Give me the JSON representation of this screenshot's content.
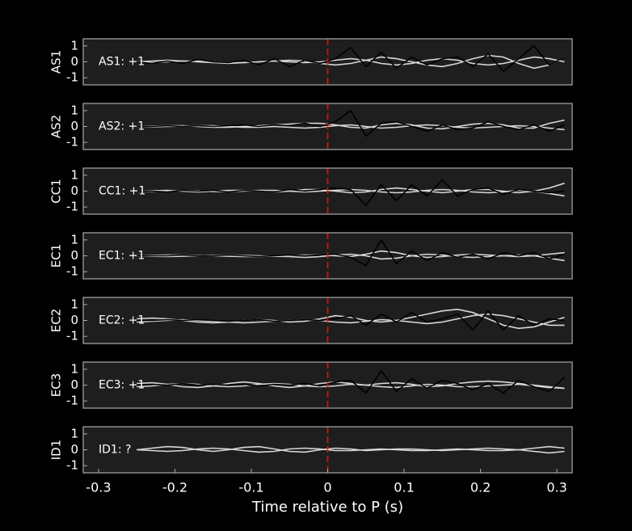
{
  "chart_data": [
    {
      "type": "line",
      "ylabel": "AS1",
      "annotation": "AS1: +1",
      "annotation_color": "#1a1ab0",
      "xlim": [
        -0.32,
        0.32
      ],
      "ylim": [
        -1.45,
        1.45
      ],
      "yticks": [
        1,
        0,
        -1
      ],
      "vline": {
        "x": 0,
        "color": "#dd1111"
      },
      "x": [
        -0.25,
        -0.23,
        -0.21,
        -0.19,
        -0.17,
        -0.15,
        -0.13,
        -0.11,
        -0.09,
        -0.07,
        -0.05,
        -0.03,
        -0.01,
        0.01,
        0.03,
        0.05,
        0.07,
        0.09,
        0.11,
        0.13,
        0.15,
        0.17,
        0.19,
        0.21,
        0.23,
        0.25,
        0.27,
        0.29,
        0.31
      ],
      "series": [
        {
          "color": "#d8d8d8",
          "values": [
            0,
            0.05,
            0.1,
            0.05,
            0,
            -0.05,
            -0.1,
            -0.05,
            0,
            0.05,
            0.1,
            0.05,
            -0.1,
            -0.2,
            -0.1,
            0.1,
            0.3,
            0.2,
            0,
            -0.2,
            -0.3,
            -0.1,
            0.2,
            0.4,
            0.3,
            -0.1,
            -0.4,
            -0.2,
            0.3
          ]
        },
        {
          "color": "#d8d8d8",
          "values": [
            0,
            -0.05,
            0,
            0.05,
            0.05,
            0,
            -0.05,
            -0.05,
            0,
            0.05,
            0,
            -0.05,
            0,
            0.1,
            0.2,
            0.1,
            -0.1,
            -0.2,
            -0.1,
            0.1,
            0.2,
            0.1,
            -0.1,
            -0.2,
            -0.1,
            0.1,
            0.3,
            0.2,
            0
          ]
        },
        {
          "color": "#000000",
          "values": [
            0,
            -0.1,
            0.05,
            -0.1,
            0.15,
            0,
            -0.05,
            0.1,
            -0.2,
            0.2,
            -0.3,
            0.1,
            -0.1,
            0.2,
            0.9,
            -0.3,
            0.6,
            -0.4,
            0.3,
            -0.2,
            0.2,
            0.3,
            -0.3,
            0.5,
            -0.6,
            0.2,
            1.0,
            -0.2,
            0.3
          ]
        }
      ]
    },
    {
      "type": "line",
      "ylabel": "AS2",
      "annotation": "AS2: +1",
      "annotation_color": "#dd1111",
      "xlim": [
        -0.32,
        0.32
      ],
      "ylim": [
        -1.45,
        1.45
      ],
      "yticks": [
        1,
        0,
        -1
      ],
      "vline": {
        "x": 0,
        "color": "#dd1111"
      },
      "x": [
        -0.25,
        -0.23,
        -0.21,
        -0.19,
        -0.17,
        -0.15,
        -0.13,
        -0.11,
        -0.09,
        -0.07,
        -0.05,
        -0.03,
        -0.01,
        0.01,
        0.03,
        0.05,
        0.07,
        0.09,
        0.11,
        0.13,
        0.15,
        0.17,
        0.19,
        0.21,
        0.23,
        0.25,
        0.27,
        0.29,
        0.31
      ],
      "series": [
        {
          "color": "#d8d8d8",
          "values": [
            0,
            0.02,
            0.05,
            0.05,
            0,
            -0.05,
            -0.05,
            0,
            0.05,
            0.1,
            0.15,
            0.2,
            0.2,
            0.1,
            -0.05,
            -0.1,
            0.1,
            0.2,
            0.1,
            -0.1,
            -0.15,
            0,
            0.15,
            0.2,
            0.1,
            -0.1,
            -0.1,
            0.2,
            0.4
          ]
        },
        {
          "color": "#d8d8d8",
          "values": [
            0,
            -0.02,
            0,
            0.02,
            0.05,
            0.05,
            0,
            -0.05,
            -0.05,
            0,
            -0.05,
            -0.1,
            -0.05,
            0.05,
            0.1,
            0,
            -0.1,
            -0.05,
            0.05,
            0.1,
            0.05,
            -0.05,
            -0.1,
            -0.05,
            0,
            0.05,
            0,
            -0.1,
            -0.2
          ]
        },
        {
          "color": "#000000",
          "values": [
            0,
            0,
            0.05,
            0,
            0.05,
            0,
            0.05,
            0.1,
            0,
            0.1,
            0.05,
            0.2,
            0,
            0.3,
            1.0,
            -0.6,
            0.2,
            0.3,
            0,
            -0.3,
            0.1,
            -0.2,
            -0.1,
            0.3,
            0,
            -0.2,
            0.1,
            -0.3,
            0.1
          ]
        }
      ]
    },
    {
      "type": "line",
      "ylabel": "CC1",
      "annotation": "CC1: +1",
      "annotation_color": "#dd1111",
      "xlim": [
        -0.32,
        0.32
      ],
      "ylim": [
        -1.45,
        1.45
      ],
      "yticks": [
        1,
        0,
        -1
      ],
      "vline": {
        "x": 0,
        "color": "#dd1111"
      },
      "x": [
        -0.25,
        -0.23,
        -0.21,
        -0.19,
        -0.17,
        -0.15,
        -0.13,
        -0.11,
        -0.09,
        -0.07,
        -0.05,
        -0.03,
        -0.01,
        0.01,
        0.03,
        0.05,
        0.07,
        0.09,
        0.11,
        0.13,
        0.15,
        0.17,
        0.19,
        0.21,
        0.23,
        0.25,
        0.27,
        0.29,
        0.31
      ],
      "series": [
        {
          "color": "#d8d8d8",
          "values": [
            0,
            0.02,
            0.05,
            0,
            -0.05,
            0,
            0.05,
            0.05,
            0,
            -0.05,
            0,
            0.1,
            0.1,
            0,
            -0.1,
            -0.05,
            0.1,
            0.2,
            0.1,
            0,
            -0.1,
            0,
            0.1,
            0.1,
            0,
            -0.1,
            0,
            0.2,
            0.5
          ]
        },
        {
          "color": "#d8d8d8",
          "values": [
            0,
            -0.02,
            0,
            0.03,
            0.02,
            -0.02,
            -0.03,
            0,
            0.05,
            0.05,
            0,
            -0.05,
            0,
            0.05,
            0.1,
            0.05,
            -0.05,
            -0.1,
            -0.05,
            0.05,
            0.1,
            0.05,
            -0.05,
            -0.1,
            -0.05,
            0.05,
            0,
            -0.15,
            -0.3
          ]
        },
        {
          "color": "#000000",
          "values": [
            0,
            0,
            -0.05,
            0.05,
            0,
            0.05,
            -0.05,
            0.05,
            0,
            -0.05,
            0.1,
            0,
            0.1,
            0.2,
            0.1,
            -0.9,
            0.4,
            -0.6,
            0.4,
            -0.3,
            0.7,
            -0.3,
            0.1,
            0.2,
            -0.2,
            0.1,
            0,
            -0.1,
            0
          ]
        }
      ]
    },
    {
      "type": "line",
      "ylabel": "EC1",
      "annotation": "EC1: +1",
      "annotation_color": "#dd1111",
      "xlim": [
        -0.32,
        0.32
      ],
      "ylim": [
        -1.45,
        1.45
      ],
      "yticks": [
        1,
        0,
        -1
      ],
      "vline": {
        "x": 0,
        "color": "#dd1111"
      },
      "x": [
        -0.25,
        -0.23,
        -0.21,
        -0.19,
        -0.17,
        -0.15,
        -0.13,
        -0.11,
        -0.09,
        -0.07,
        -0.05,
        -0.03,
        -0.01,
        0.01,
        0.03,
        0.05,
        0.07,
        0.09,
        0.11,
        0.13,
        0.15,
        0.17,
        0.19,
        0.21,
        0.23,
        0.25,
        0.27,
        0.29,
        0.31
      ],
      "series": [
        {
          "color": "#d8d8d8",
          "values": [
            0,
            0.03,
            0.05,
            0.05,
            0.02,
            0,
            -0.03,
            -0.05,
            -0.05,
            -0.02,
            0.02,
            0.05,
            0.05,
            0,
            -0.05,
            0.1,
            0.3,
            0.2,
            0,
            -0.1,
            -0.05,
            0.05,
            0.1,
            0.05,
            0,
            -0.05,
            0,
            0.1,
            0.2
          ]
        },
        {
          "color": "#d8d8d8",
          "values": [
            0,
            -0.03,
            -0.05,
            -0.03,
            0,
            0.03,
            0.05,
            0.03,
            0,
            -0.03,
            -0.05,
            -0.1,
            -0.05,
            0.05,
            0.1,
            0,
            -0.2,
            -0.15,
            0,
            0.1,
            0.05,
            -0.05,
            -0.1,
            -0.05,
            0,
            0.05,
            0,
            -0.15,
            -0.3
          ]
        },
        {
          "color": "#000000",
          "values": [
            0,
            0,
            0,
            0.05,
            0,
            0,
            0.05,
            0,
            -0.05,
            0,
            0.05,
            0,
            0.05,
            0.1,
            -0.1,
            -0.6,
            1.0,
            -0.5,
            0.3,
            -0.3,
            0.2,
            -0.1,
            0.1,
            -0.2,
            0.2,
            0,
            0.2,
            -0.2,
            0.1
          ]
        }
      ]
    },
    {
      "type": "line",
      "ylabel": "EC2",
      "annotation": "EC2: +1",
      "annotation_color": "#dd1111",
      "xlim": [
        -0.32,
        0.32
      ],
      "ylim": [
        -1.45,
        1.45
      ],
      "yticks": [
        1,
        0,
        -1
      ],
      "vline": {
        "x": 0,
        "color": "#dd1111"
      },
      "x": [
        -0.25,
        -0.23,
        -0.21,
        -0.19,
        -0.17,
        -0.15,
        -0.13,
        -0.11,
        -0.09,
        -0.07,
        -0.05,
        -0.03,
        -0.01,
        0.01,
        0.03,
        0.05,
        0.07,
        0.09,
        0.11,
        0.13,
        0.15,
        0.17,
        0.19,
        0.21,
        0.23,
        0.25,
        0.27,
        0.29,
        0.31
      ],
      "series": [
        {
          "color": "#d8d8d8",
          "values": [
            0.1,
            0.15,
            0.1,
            0,
            -0.1,
            -0.15,
            -0.1,
            0,
            0.05,
            0,
            -0.1,
            -0.05,
            0.1,
            0.3,
            0.2,
            0,
            -0.1,
            0,
            0.2,
            0.4,
            0.6,
            0.7,
            0.5,
            0.1,
            -0.3,
            -0.5,
            -0.4,
            -0.1,
            0.2
          ]
        },
        {
          "color": "#d8d8d8",
          "values": [
            -0.1,
            -0.05,
            0,
            0.05,
            0,
            -0.05,
            -0.1,
            -0.15,
            -0.1,
            -0.05,
            0,
            0.05,
            0,
            -0.1,
            -0.15,
            -0.05,
            0.05,
            0,
            -0.1,
            -0.2,
            -0.1,
            0.1,
            0.3,
            0.4,
            0.3,
            0.1,
            -0.1,
            -0.3,
            -0.3
          ]
        },
        {
          "color": "#000000",
          "values": [
            0,
            0,
            0.05,
            0,
            0.05,
            0,
            -0.05,
            0,
            0.05,
            -0.05,
            0,
            0.05,
            0,
            0.1,
            0.3,
            -0.3,
            0.4,
            -0.1,
            0.5,
            -0.1,
            0.1,
            0.4,
            -0.6,
            0.6,
            -0.6,
            0.3,
            -0.3,
            0.1,
            0
          ]
        }
      ]
    },
    {
      "type": "line",
      "ylabel": "EC3",
      "annotation": "EC3: +1",
      "annotation_color": "#dd1111",
      "xlim": [
        -0.32,
        0.32
      ],
      "ylim": [
        -1.45,
        1.45
      ],
      "yticks": [
        1,
        0,
        -1
      ],
      "vline": {
        "x": 0,
        "color": "#dd1111"
      },
      "x": [
        -0.25,
        -0.23,
        -0.21,
        -0.19,
        -0.17,
        -0.15,
        -0.13,
        -0.11,
        -0.09,
        -0.07,
        -0.05,
        -0.03,
        -0.01,
        0.01,
        0.03,
        0.05,
        0.07,
        0.09,
        0.11,
        0.13,
        0.15,
        0.17,
        0.19,
        0.21,
        0.23,
        0.25,
        0.27,
        0.29,
        0.31
      ],
      "series": [
        {
          "color": "#d8d8d8",
          "values": [
            0.1,
            0.15,
            0.05,
            -0.1,
            -0.15,
            -0.05,
            0.1,
            0.2,
            0.1,
            -0.05,
            -0.15,
            -0.05,
            0.1,
            0.2,
            0.1,
            0,
            0.1,
            0.15,
            0.05,
            -0.1,
            -0.05,
            0.1,
            0.2,
            0.25,
            0.2,
            0.1,
            0,
            -0.1,
            -0.2
          ]
        },
        {
          "color": "#d8d8d8",
          "values": [
            -0.1,
            -0.05,
            0.05,
            0.1,
            0.05,
            -0.05,
            -0.1,
            -0.05,
            0.05,
            0.1,
            0.05,
            -0.05,
            -0.1,
            -0.05,
            0.05,
            0,
            -0.1,
            -0.15,
            -0.05,
            0.05,
            0,
            -0.1,
            -0.1,
            -0.05,
            0,
            0.05,
            -0.05,
            -0.15,
            -0.2
          ]
        },
        {
          "color": "#000000",
          "values": [
            0,
            0.05,
            0,
            0.1,
            0,
            0.05,
            0,
            0.05,
            -0.05,
            0.05,
            0,
            0.1,
            -0.05,
            0.2,
            0.3,
            -0.5,
            0.9,
            -0.4,
            0.4,
            -0.2,
            0.3,
            0.1,
            -0.3,
            0.1,
            -0.5,
            0.3,
            -0.1,
            -0.4,
            0.5
          ]
        }
      ]
    },
    {
      "type": "line",
      "ylabel": "ID1",
      "annotation": "ID1: ?",
      "annotation_color": "#888888",
      "xlim": [
        -0.32,
        0.32
      ],
      "ylim": [
        -1.45,
        1.45
      ],
      "yticks": [
        1,
        0,
        -1
      ],
      "vline": {
        "x": 0,
        "color": "#dd1111"
      },
      "xticks": [
        -0.3,
        -0.2,
        -0.1,
        0,
        0.1,
        0.2,
        0.3
      ],
      "xlabel": "Time relative to P (s)",
      "x": [
        -0.25,
        -0.23,
        -0.21,
        -0.19,
        -0.17,
        -0.15,
        -0.13,
        -0.11,
        -0.09,
        -0.07,
        -0.05,
        -0.03,
        -0.01,
        0.01,
        0.03,
        0.05,
        0.07,
        0.09,
        0.11,
        0.13,
        0.15,
        0.17,
        0.19,
        0.21,
        0.23,
        0.25,
        0.27,
        0.29,
        0.31
      ],
      "series": [
        {
          "color": "#d8d8d8",
          "values": [
            0,
            0.1,
            0.2,
            0.15,
            0,
            -0.1,
            0,
            0.15,
            0.2,
            0.05,
            -0.1,
            -0.15,
            0,
            0.1,
            0.05,
            -0.05,
            0,
            0.05,
            0.05,
            0,
            -0.05,
            0,
            0.05,
            0.1,
            0.05,
            0,
            0.1,
            0.2,
            0.1
          ]
        },
        {
          "color": "#d8d8d8",
          "values": [
            0,
            -0.05,
            -0.1,
            -0.05,
            0.05,
            0.1,
            0.05,
            -0.05,
            -0.15,
            -0.1,
            0.05,
            0.1,
            0.05,
            -0.05,
            -0.05,
            0,
            0.05,
            0,
            -0.05,
            -0.05,
            0,
            0.05,
            0,
            -0.05,
            -0.05,
            0,
            -0.1,
            -0.2,
            -0.1
          ]
        }
      ]
    }
  ]
}
